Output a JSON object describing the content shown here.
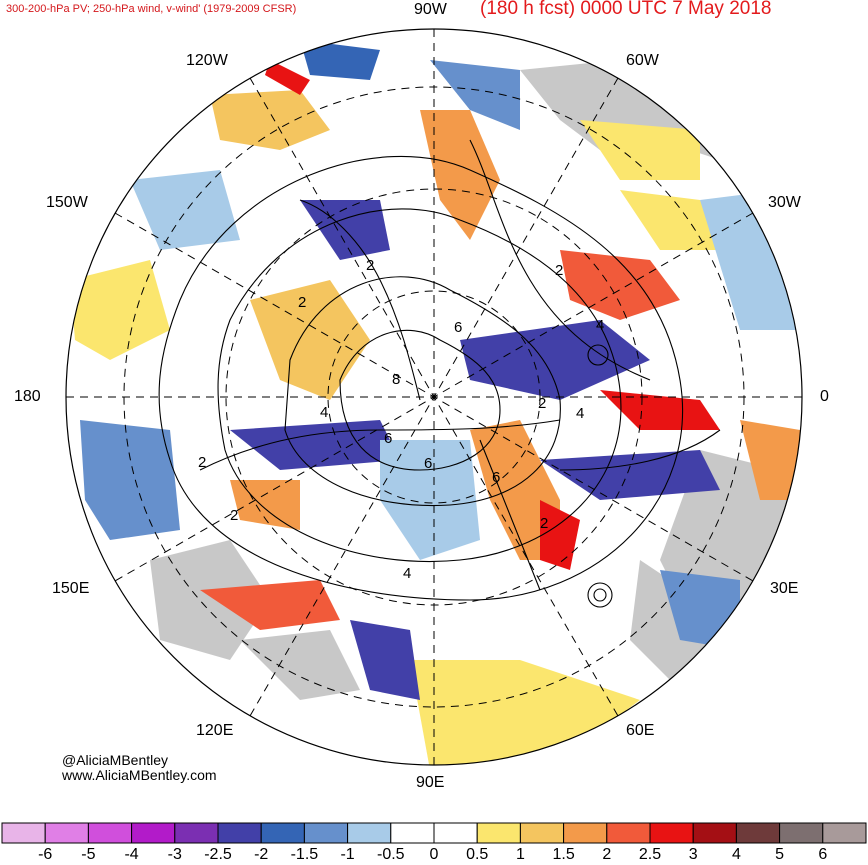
{
  "header": {
    "left_title": "300-200-hPa PV; 250-hPa wind, v-wind' (1979-2009 CFSR)",
    "right_title": "(180 h fcst) 0000 UTC 7 May 2018"
  },
  "map": {
    "projection": "north-polar-stereographic",
    "longitude_labels": {
      "top": "90W",
      "bottom": "90E",
      "left": "180",
      "right": "0",
      "upper_left_1": "120W",
      "upper_left_2": "150W",
      "upper_right_1": "60W",
      "upper_right_2": "30W",
      "lower_left_1": "150E",
      "lower_left_2": "120E",
      "lower_right_1": "30E",
      "lower_right_2": "60E"
    },
    "contour_labels": [
      "2",
      "2",
      "2",
      "2",
      "2",
      "2",
      "2",
      "4",
      "4",
      "4",
      "4",
      "6",
      "6",
      "6",
      "6",
      "8"
    ]
  },
  "credits": {
    "handle": "@AliciaMBentley",
    "website": "www.AliciaMBentley.com"
  },
  "colorbar": {
    "ticks": [
      "-6",
      "-5",
      "-4",
      "-3",
      "-2.5",
      "-2",
      "-1.5",
      "-1",
      "-0.5",
      "0",
      "0.5",
      "1",
      "1.5",
      "2",
      "2.5",
      "3",
      "4",
      "5",
      "6"
    ],
    "colors": [
      "#e8b4e8",
      "#e07fe6",
      "#d04fdc",
      "#b21bc9",
      "#7b2fb2",
      "#4240a8",
      "#3465b5",
      "#6690cc",
      "#a8cbe8",
      "#ffffff",
      "#ffffff",
      "#fbe66e",
      "#f4c55f",
      "#f39a4a",
      "#f15a3a",
      "#e81313",
      "#a40f14",
      "#6e3a3a",
      "#7d6f70",
      "#a89a9a"
    ]
  }
}
